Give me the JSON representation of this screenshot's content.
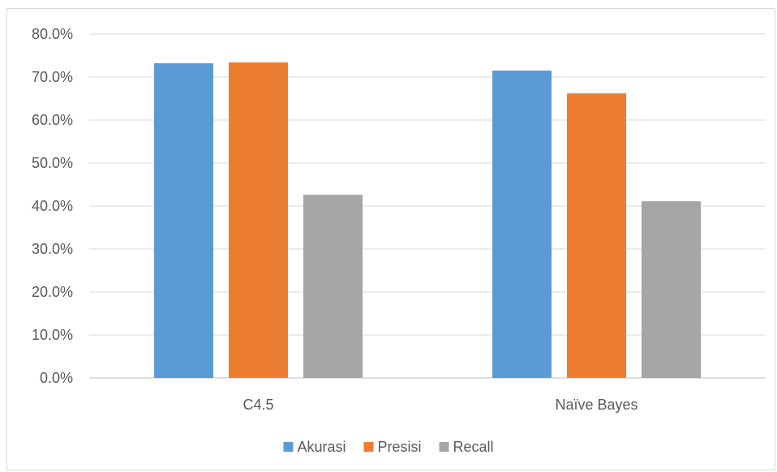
{
  "chart_data": {
    "type": "bar",
    "title": "",
    "xlabel": "",
    "ylabel": "",
    "categories": [
      "C4.5",
      "Naïve Bayes"
    ],
    "series": [
      {
        "name": "Akurasi",
        "values": [
          73.2,
          71.5
        ],
        "color": "#5b9bd5"
      },
      {
        "name": "Presisi",
        "values": [
          73.4,
          66.2
        ],
        "color": "#ed7d31"
      },
      {
        "name": "Recall",
        "values": [
          42.6,
          41.1
        ],
        "color": "#a5a5a5"
      }
    ],
    "ylim": [
      0,
      80
    ],
    "yticks": [
      "0.0%",
      "10.0%",
      "20.0%",
      "30.0%",
      "40.0%",
      "50.0%",
      "60.0%",
      "70.0%",
      "80.0%"
    ],
    "grid": true,
    "legend_position": "bottom"
  }
}
